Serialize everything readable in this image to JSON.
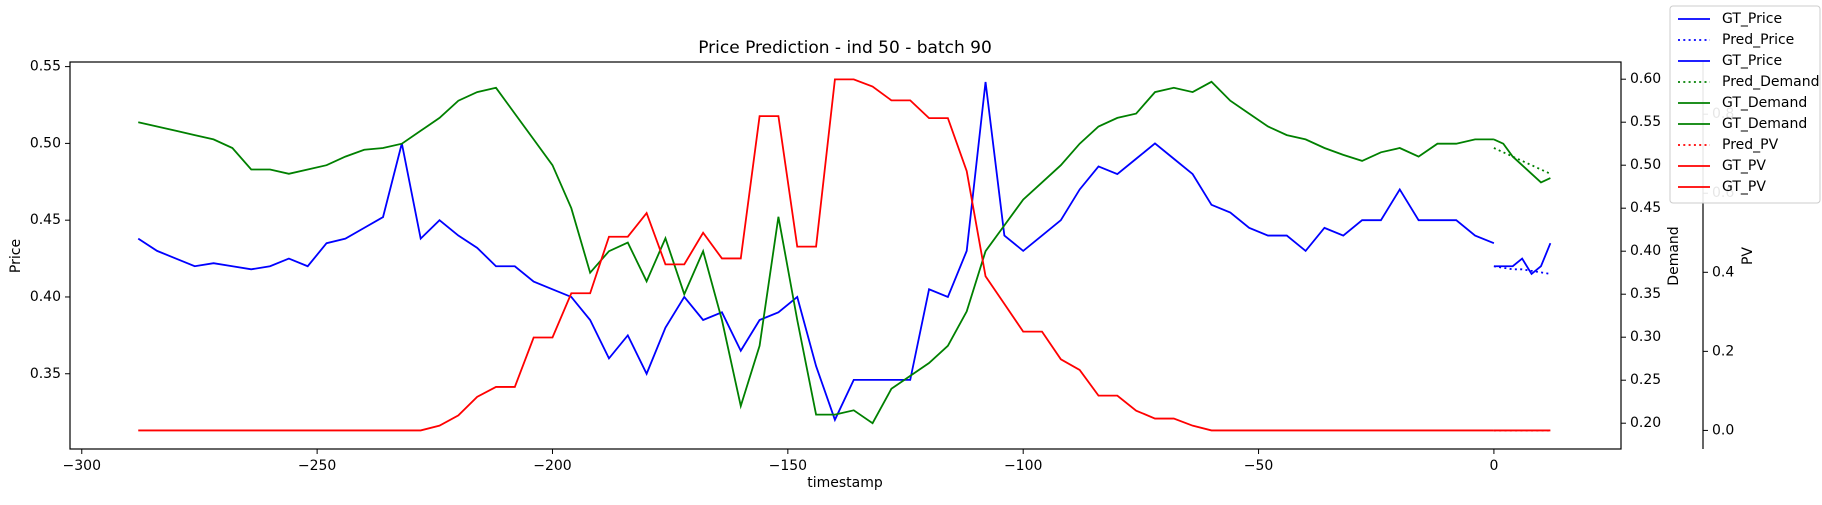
{
  "chart_data": {
    "type": "line",
    "title": "Price Prediction - ind 50 - batch 90",
    "xlabel": "timestamp",
    "ylabel": "Price",
    "y2label": "Demand",
    "y3label": "PV",
    "xlim": [
      -302.5,
      27
    ],
    "xticks": [
      {
        "value": -300,
        "label": "−300"
      },
      {
        "value": -250,
        "label": "−250"
      },
      {
        "value": -200,
        "label": "−200"
      },
      {
        "value": -150,
        "label": "−150"
      },
      {
        "value": -100,
        "label": "−100"
      },
      {
        "value": -50,
        "label": "−50"
      },
      0
    ],
    "ylim": [
      0.301,
      0.553
    ],
    "yticks": [
      0.35,
      {
        "value": 0.4,
        "label": "0.40"
      },
      0.45,
      {
        "value": 0.5,
        "label": "0.50"
      },
      0.55
    ],
    "y2lim": [
      0.17,
      0.62
    ],
    "y2ticks": [
      {
        "value": 0.2,
        "label": "0.20"
      },
      0.25,
      {
        "value": 0.3,
        "label": "0.30"
      },
      0.35,
      {
        "value": 0.4,
        "label": "0.40"
      },
      0.45,
      {
        "value": 0.5,
        "label": "0.50"
      },
      0.55,
      {
        "value": 0.6,
        "label": "0.60"
      }
    ],
    "y3lim": [
      -0.047,
      0.932
    ],
    "y3ticks": [
      {
        "value": 0,
        "label": "0.0"
      },
      0.2,
      0.4,
      0.6,
      0.8
    ],
    "label_colors": {
      "y": "#0000ff",
      "y2": "#008000",
      "y3": "#ff0000"
    },
    "legend": "upper right",
    "series": [
      {
        "name": "GT_Price",
        "color": "#0000ff",
        "linestyle": "solid",
        "axis": "y",
        "x": [
          -288,
          -284,
          -280,
          -276,
          -272,
          -268,
          -264,
          -260,
          -256,
          -252,
          -248,
          -244,
          -240,
          -236,
          -232,
          -228,
          -224,
          -220,
          -216,
          -212,
          -208,
          -204,
          -200,
          -196,
          -192,
          -188,
          -184,
          -180,
          -176,
          -172,
          -168,
          -164,
          -160,
          -156,
          -152,
          -148,
          -144,
          -140,
          -136,
          -132,
          -128,
          -124,
          -120,
          -116,
          -112,
          -108,
          -104,
          -100,
          -96,
          -92,
          -88,
          -84,
          -80,
          -76,
          -72,
          -68,
          -64,
          -60,
          -56,
          -52,
          -48,
          -44,
          -40,
          -36,
          -32,
          -28,
          -24,
          -20,
          -16,
          -12,
          -8,
          -4,
          0
        ],
        "values": [
          0.438,
          0.43,
          0.425,
          0.42,
          0.422,
          0.42,
          0.418,
          0.42,
          0.425,
          0.42,
          0.435,
          0.438,
          0.445,
          0.452,
          0.5,
          0.438,
          0.45,
          0.44,
          0.432,
          0.42,
          0.42,
          0.41,
          0.405,
          0.4,
          0.385,
          0.36,
          0.375,
          0.35,
          0.38,
          0.4,
          0.385,
          0.39,
          0.365,
          0.385,
          0.39,
          0.4,
          0.355,
          0.32,
          0.346,
          0.346,
          0.346,
          0.346,
          0.405,
          0.4,
          0.43,
          0.54,
          0.44,
          0.43,
          0.44,
          0.45,
          0.47,
          0.485,
          0.48,
          0.49,
          0.5,
          0.49,
          0.48,
          0.46,
          0.455,
          0.445,
          0.44,
          0.44,
          0.43,
          0.445,
          0.44,
          0.45,
          0.45,
          0.47,
          0.45,
          0.45,
          0.45,
          0.44,
          0.435
        ]
      },
      {
        "name": "Pred_Price",
        "color": "#0000ff",
        "linestyle": "dotted",
        "axis": "y",
        "x": [
          0,
          2,
          4,
          6,
          8,
          10,
          12
        ],
        "values": [
          0.42,
          0.419,
          0.418,
          0.418,
          0.417,
          0.416,
          0.415
        ]
      },
      {
        "name": "GT_Price",
        "color": "#0000ff",
        "linestyle": "solid",
        "axis": "y",
        "x": [
          0,
          2,
          4,
          6,
          8,
          10,
          12
        ],
        "values": [
          0.42,
          0.42,
          0.42,
          0.425,
          0.415,
          0.42,
          0.435
        ]
      },
      {
        "name": "Pred_Demand",
        "color": "#008000",
        "linestyle": "dotted",
        "axis": "y2",
        "x": [
          0,
          2,
          4,
          6,
          8,
          10,
          12
        ],
        "values": [
          0.52,
          0.515,
          0.51,
          0.505,
          0.5,
          0.495,
          0.49
        ]
      },
      {
        "name": "GT_Demand",
        "color": "#008000",
        "linestyle": "solid",
        "axis": "y2",
        "x": [
          -288,
          -284,
          -280,
          -276,
          -272,
          -268,
          -264,
          -260,
          -256,
          -252,
          -248,
          -244,
          -240,
          -236,
          -232,
          -228,
          -224,
          -220,
          -216,
          -212,
          -208,
          -204,
          -200,
          -196,
          -192,
          -188,
          -184,
          -180,
          -176,
          -172,
          -168,
          -164,
          -160,
          -156,
          -152,
          -148,
          -144,
          -140,
          -136,
          -132,
          -128,
          -124,
          -120,
          -116,
          -112,
          -108,
          -104,
          -100,
          -96,
          -92,
          -88,
          -84,
          -80,
          -76,
          -72,
          -68,
          -64,
          -60,
          -56,
          -52,
          -48,
          -44,
          -40,
          -36,
          -32,
          -28,
          -24,
          -20,
          -16,
          -12,
          -8,
          -4,
          0
        ],
        "values": [
          0.55,
          0.545,
          0.54,
          0.535,
          0.53,
          0.52,
          0.495,
          0.495,
          0.49,
          0.495,
          0.5,
          0.51,
          0.518,
          0.52,
          0.525,
          0.54,
          0.555,
          0.575,
          0.585,
          0.59,
          0.56,
          0.53,
          0.5,
          0.45,
          0.375,
          0.4,
          0.41,
          0.365,
          0.415,
          0.35,
          0.4,
          0.32,
          0.22,
          0.29,
          0.44,
          0.32,
          0.21,
          0.21,
          0.215,
          0.2,
          0.24,
          0.255,
          0.27,
          0.29,
          0.33,
          0.4,
          0.43,
          0.46,
          0.48,
          0.5,
          0.525,
          0.545,
          0.555,
          0.56,
          0.585,
          0.59,
          0.585,
          0.597,
          0.575,
          0.56,
          0.545,
          0.535,
          0.53,
          0.52,
          0.512,
          0.505,
          0.515,
          0.52,
          0.51,
          0.525,
          0.525,
          0.53,
          0.53
        ]
      },
      {
        "name": "GT_Demand",
        "color": "#008000",
        "linestyle": "solid",
        "axis": "y2",
        "x": [
          0,
          2,
          4,
          6,
          8,
          10,
          12
        ],
        "values": [
          0.53,
          0.525,
          0.51,
          0.5,
          0.49,
          0.48,
          0.485
        ]
      },
      {
        "name": "Pred_PV",
        "color": "#ff0000",
        "linestyle": "dotted",
        "axis": "y3",
        "x": [
          0,
          2,
          4,
          6,
          8,
          10,
          12
        ],
        "values": [
          0,
          0,
          0,
          0,
          0,
          0,
          0
        ]
      },
      {
        "name": "GT_PV",
        "color": "#ff0000",
        "linestyle": "solid",
        "axis": "y3",
        "x": [
          -288,
          -284,
          -280,
          -276,
          -272,
          -268,
          -264,
          -260,
          -256,
          -252,
          -248,
          -244,
          -240,
          -236,
          -232,
          -228,
          -224,
          -220,
          -216,
          -212,
          -208,
          -204,
          -200,
          -196,
          -192,
          -188,
          -184,
          -180,
          -176,
          -172,
          -168,
          -164,
          -160,
          -156,
          -152,
          -148,
          -144,
          -140,
          -136,
          -132,
          -128,
          -124,
          -120,
          -116,
          -112,
          -108,
          -104,
          -100,
          -96,
          -92,
          -88,
          -84,
          -80,
          -76,
          -72,
          -68,
          -64,
          -60,
          -56,
          -52,
          -48,
          -44,
          -40,
          -36,
          -32,
          -28,
          -24,
          -20,
          -16,
          -12,
          -8,
          -4,
          0
        ],
        "values": [
          0,
          0,
          0,
          0,
          0,
          0,
          0,
          0,
          0,
          0,
          0,
          0,
          0,
          0,
          0,
          0,
          0.012,
          0.038,
          0.085,
          0.11,
          0.11,
          0.235,
          0.235,
          0.347,
          0.347,
          0.49,
          0.49,
          0.55,
          0.42,
          0.42,
          0.5,
          0.435,
          0.435,
          0.795,
          0.795,
          0.465,
          0.465,
          0.888,
          0.888,
          0.87,
          0.835,
          0.835,
          0.79,
          0.79,
          0.656,
          0.39,
          0.32,
          0.25,
          0.25,
          0.18,
          0.153,
          0.088,
          0.088,
          0.05,
          0.03,
          0.03,
          0.012,
          0,
          0,
          0,
          0,
          0,
          0,
          0,
          0,
          0,
          0,
          0,
          0,
          0,
          0,
          0,
          0
        ]
      },
      {
        "name": "GT_PV",
        "color": "#ff0000",
        "linestyle": "solid",
        "axis": "y3",
        "x": [
          0,
          2,
          4,
          6,
          8,
          10,
          12
        ],
        "values": [
          0,
          0,
          0,
          0,
          0,
          0,
          0
        ]
      }
    ]
  }
}
